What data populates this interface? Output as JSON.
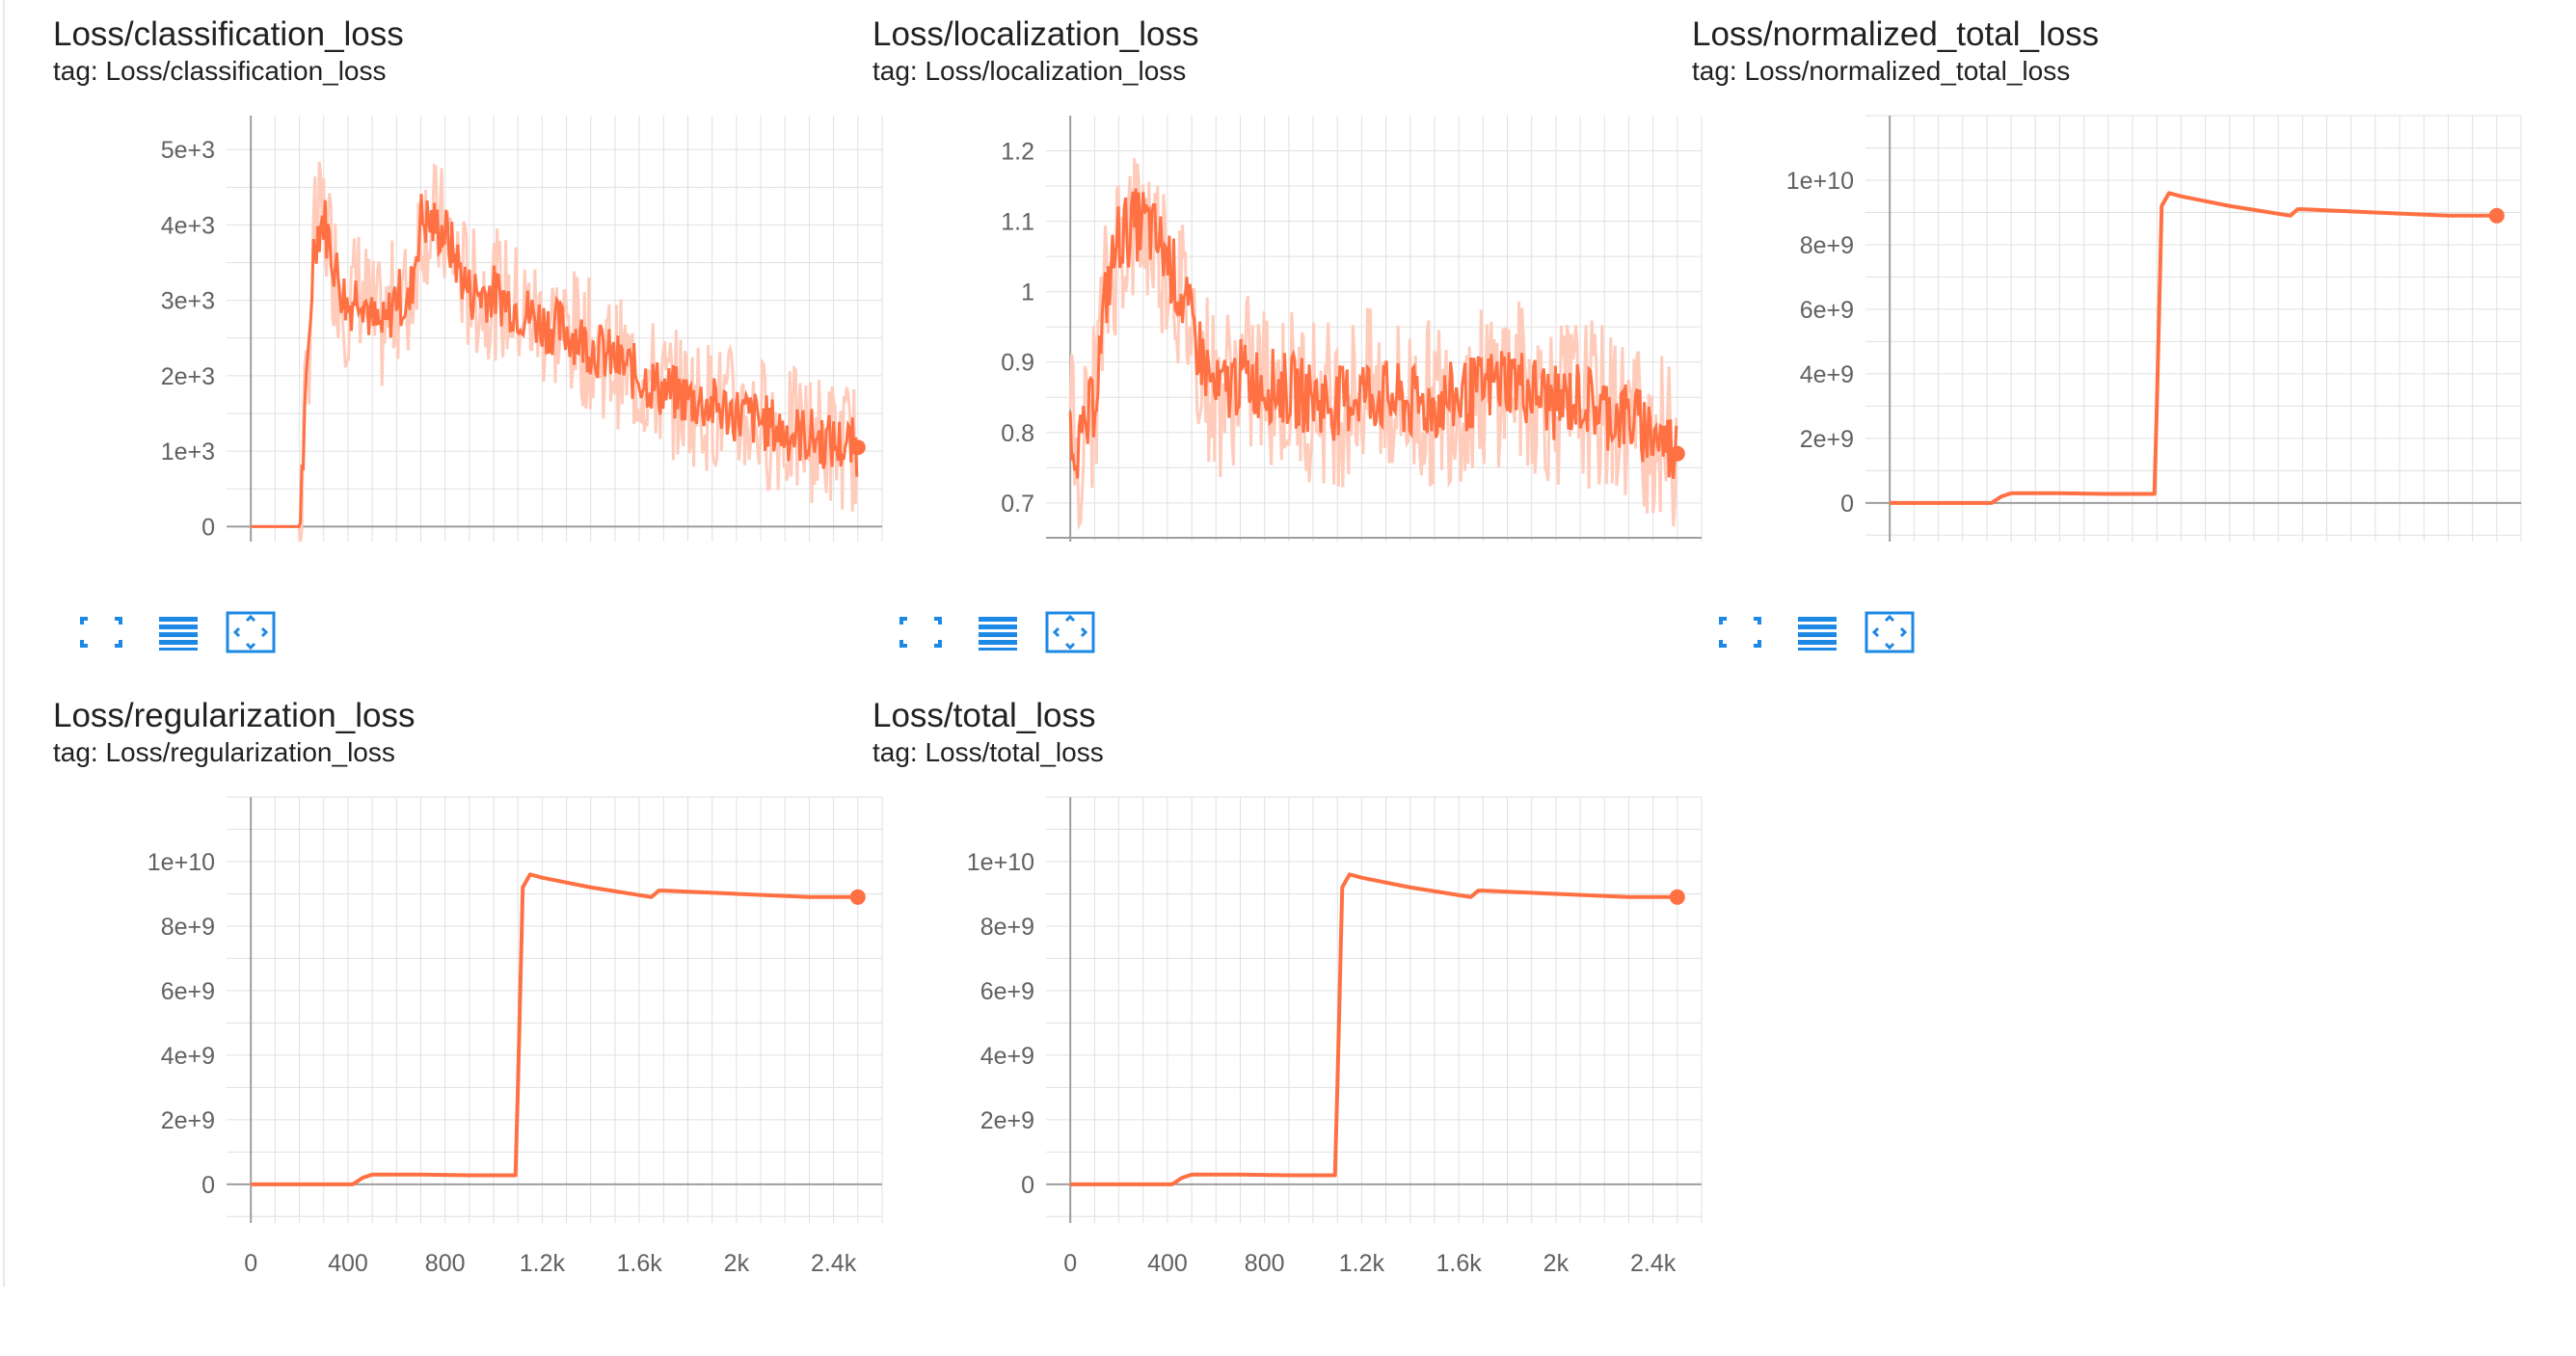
{
  "colors": {
    "line": "#ff7043",
    "line_light": "#ffccbc",
    "grid": "#e0e0e0",
    "axis": "#9e9e9e",
    "icon": "#1e88e5"
  },
  "card_actions": [
    {
      "name": "expand-icon"
    },
    {
      "name": "data-table-icon"
    },
    {
      "name": "fit-domain-icon"
    }
  ],
  "charts": [
    {
      "title": "Loss/classification_loss",
      "tag": "tag: Loss/classification_loss",
      "show_x_ticks": false
    },
    {
      "title": "Loss/localization_loss",
      "tag": "tag: Loss/localization_loss",
      "show_x_ticks": false
    },
    {
      "title": "Loss/normalized_total_loss",
      "tag": "tag: Loss/normalized_total_loss",
      "show_x_ticks": false
    },
    {
      "title": "Loss/regularization_loss",
      "tag": "tag: Loss/regularization_loss",
      "show_x_ticks": true
    },
    {
      "title": "Loss/total_loss",
      "tag": "tag: Loss/total_loss",
      "show_x_ticks": true
    }
  ],
  "chart_data": [
    {
      "type": "line",
      "title": "Loss/classification_loss",
      "xlim": [
        -100,
        2600
      ],
      "ylim": [
        -200,
        5450
      ],
      "y_ticks": [
        0,
        1000,
        2000,
        3000,
        4000,
        5000
      ],
      "y_tick_labels": [
        "0",
        "1e+3",
        "2e+3",
        "3e+3",
        "4e+3",
        "5e+3"
      ],
      "grid": true,
      "series": [
        {
          "x": [
            0,
            200,
            230,
            260,
            300,
            350,
            400,
            450,
            500,
            550,
            600,
            650,
            700,
            800,
            900,
            1000,
            1100,
            1200,
            1300,
            1400,
            1500,
            1600,
            1700,
            1800,
            1900,
            2000,
            2100,
            2200,
            2300,
            2400,
            2500
          ],
          "values": [
            0,
            0,
            1800,
            3800,
            4100,
            3400,
            2900,
            3200,
            2700,
            2600,
            3100,
            2900,
            4100,
            3900,
            3100,
            3100,
            2900,
            2700,
            2600,
            2400,
            2200,
            2000,
            1800,
            1700,
            1600,
            1500,
            1400,
            1250,
            1200,
            1100,
            1050
          ],
          "smoothed": true
        }
      ]
    },
    {
      "type": "line",
      "title": "Loss/localization_loss",
      "xlim": [
        -100,
        2600
      ],
      "ylim": [
        0.645,
        1.25
      ],
      "y_ticks": [
        0.7,
        0.8,
        0.9,
        1.0,
        1.1,
        1.2
      ],
      "y_tick_labels": [
        "0.7",
        "0.8",
        "0.9",
        "1",
        "1.1",
        "1.2"
      ],
      "grid": true,
      "series": [
        {
          "x": [
            0,
            50,
            100,
            150,
            200,
            300,
            400,
            500,
            600,
            700,
            800,
            900,
            1000,
            1100,
            1200,
            1300,
            1400,
            1500,
            1600,
            1700,
            1800,
            1900,
            2000,
            2100,
            2200,
            2300,
            2400,
            2500
          ],
          "values": [
            0.8,
            0.78,
            0.85,
            1.0,
            1.08,
            1.1,
            1.05,
            0.95,
            0.85,
            0.88,
            0.87,
            0.86,
            0.85,
            0.84,
            0.86,
            0.85,
            0.84,
            0.84,
            0.85,
            0.86,
            0.88,
            0.86,
            0.84,
            0.85,
            0.83,
            0.82,
            0.8,
            0.77
          ],
          "smoothed": true
        }
      ]
    },
    {
      "type": "line",
      "title": "Loss/normalized_total_loss",
      "xlim": [
        -100,
        2600
      ],
      "ylim": [
        -1200000000.0,
        12000000000.0
      ],
      "y_ticks": [
        0,
        2000000000.0,
        4000000000.0,
        6000000000.0,
        8000000000.0,
        10000000000.0
      ],
      "y_tick_labels": [
        "0",
        "2e+9",
        "4e+9",
        "6e+9",
        "8e+9",
        "1e+10"
      ],
      "grid": true,
      "series": [
        {
          "x": [
            0,
            420,
            460,
            500,
            700,
            900,
            1090,
            1100,
            1120,
            1150,
            1200,
            1400,
            1650,
            1680,
            1700,
            2000,
            2300,
            2500
          ],
          "values": [
            0,
            0,
            200000000,
            300000000,
            300000000,
            280000000,
            280000000,
            3000000000,
            9200000000,
            9600000000,
            9500000000,
            9200000000,
            8900000000,
            9100000000,
            9100000000,
            9000000000,
            8900000000,
            8900000000
          ]
        }
      ]
    },
    {
      "type": "line",
      "title": "Loss/regularization_loss",
      "xlim": [
        -100,
        2600
      ],
      "ylim": [
        -1200000000.0,
        12000000000.0
      ],
      "x_ticks": [
        0,
        400,
        800,
        1200,
        1600,
        2000,
        2400
      ],
      "x_tick_labels": [
        "0",
        "400",
        "800",
        "1.2k",
        "1.6k",
        "2k",
        "2.4k"
      ],
      "y_ticks": [
        0,
        2000000000.0,
        4000000000.0,
        6000000000.0,
        8000000000.0,
        10000000000.0
      ],
      "y_tick_labels": [
        "0",
        "2e+9",
        "4e+9",
        "6e+9",
        "8e+9",
        "1e+10"
      ],
      "grid": true,
      "series": [
        {
          "x": [
            0,
            420,
            460,
            500,
            700,
            900,
            1090,
            1100,
            1120,
            1150,
            1200,
            1400,
            1650,
            1680,
            1700,
            2000,
            2300,
            2500
          ],
          "values": [
            0,
            0,
            200000000,
            300000000,
            300000000,
            280000000,
            280000000,
            3000000000,
            9200000000,
            9600000000,
            9500000000,
            9200000000,
            8900000000,
            9100000000,
            9100000000,
            9000000000,
            8900000000,
            8900000000
          ]
        }
      ]
    },
    {
      "type": "line",
      "title": "Loss/total_loss",
      "xlim": [
        -100,
        2600
      ],
      "ylim": [
        -1200000000.0,
        12000000000.0
      ],
      "x_ticks": [
        0,
        400,
        800,
        1200,
        1600,
        2000,
        2400
      ],
      "x_tick_labels": [
        "0",
        "400",
        "800",
        "1.2k",
        "1.6k",
        "2k",
        "2.4k"
      ],
      "y_ticks": [
        0,
        2000000000.0,
        4000000000.0,
        6000000000.0,
        8000000000.0,
        10000000000.0
      ],
      "y_tick_labels": [
        "0",
        "2e+9",
        "4e+9",
        "6e+9",
        "8e+9",
        "1e+10"
      ],
      "grid": true,
      "series": [
        {
          "x": [
            0,
            420,
            460,
            500,
            700,
            900,
            1090,
            1100,
            1120,
            1150,
            1200,
            1400,
            1650,
            1680,
            1700,
            2000,
            2300,
            2500
          ],
          "values": [
            0,
            0,
            200000000,
            300000000,
            300000000,
            280000000,
            280000000,
            3000000000,
            9200000000,
            9600000000,
            9500000000,
            9200000000,
            8900000000,
            9100000000,
            9100000000,
            9000000000,
            8900000000,
            8900000000
          ]
        }
      ]
    }
  ]
}
